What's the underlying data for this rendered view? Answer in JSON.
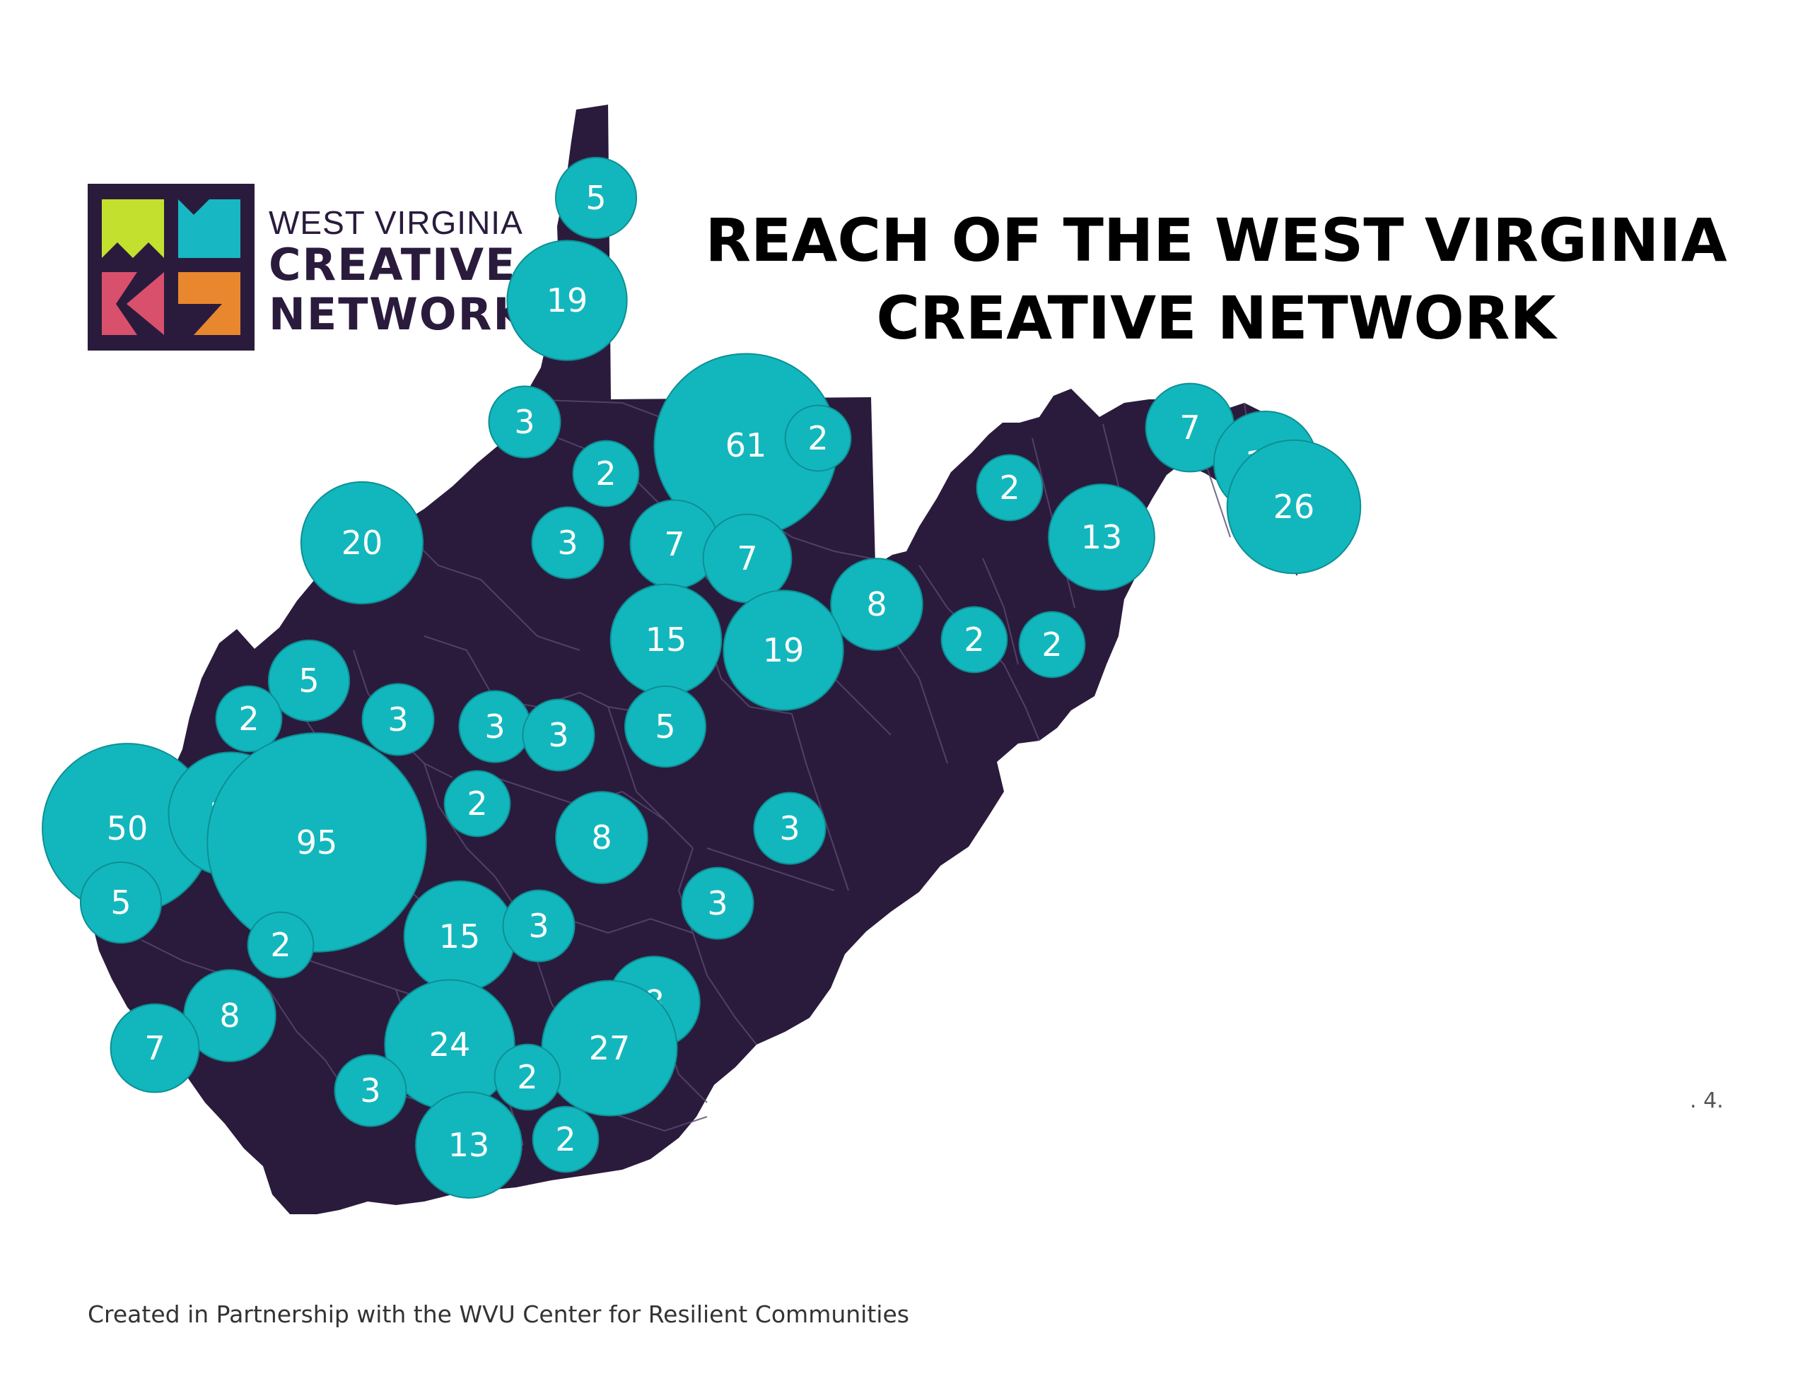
{
  "logo": {
    "line1": "WEST VIRGINIA",
    "line2": "CREATIVE",
    "line3": "NETWORK",
    "colors": {
      "frame": "#2a1b3d",
      "lime": "#c3e02e",
      "teal": "#17b7c3",
      "pink": "#d9506c",
      "orange": "#e8872d"
    }
  },
  "title": {
    "line1": "REACH OF THE WEST VIRGINIA",
    "line2": "CREATIVE NETWORK"
  },
  "footer": "Created in Partnership with the WVU Center for Resilient Communities",
  "page_mark": ". 4.",
  "map": {
    "state_fill": "#2a1b3d",
    "border_color": "#5a4a70",
    "bubble_fill": "#12b7bd",
    "bubble_text_color": "#ffffff",
    "counts": [
      {
        "label": "5"
      },
      {
        "label": "19"
      },
      {
        "label": "3"
      },
      {
        "label": "2"
      },
      {
        "label": "61"
      },
      {
        "label": "2"
      },
      {
        "label": "7"
      },
      {
        "label": "12"
      },
      {
        "label": "26"
      },
      {
        "label": "2"
      },
      {
        "label": "13"
      },
      {
        "label": "20"
      },
      {
        "label": "3"
      },
      {
        "label": "7"
      },
      {
        "label": "7"
      },
      {
        "label": "8"
      },
      {
        "label": "15"
      },
      {
        "label": "19"
      },
      {
        "label": "2"
      },
      {
        "label": "2"
      },
      {
        "label": "5"
      },
      {
        "label": "2"
      },
      {
        "label": "3"
      },
      {
        "label": "3"
      },
      {
        "label": "3"
      },
      {
        "label": "5"
      },
      {
        "label": "50"
      },
      {
        "label": "21"
      },
      {
        "label": "95"
      },
      {
        "label": "2"
      },
      {
        "label": "8"
      },
      {
        "label": "3"
      },
      {
        "label": "5"
      },
      {
        "label": "3"
      },
      {
        "label": "2"
      },
      {
        "label": "15"
      },
      {
        "label": "3"
      },
      {
        "label": "8"
      },
      {
        "label": "8"
      },
      {
        "label": "7"
      },
      {
        "label": "24"
      },
      {
        "label": "27"
      },
      {
        "label": "2"
      },
      {
        "label": "3"
      },
      {
        "label": "13"
      },
      {
        "label": "2"
      }
    ]
  }
}
